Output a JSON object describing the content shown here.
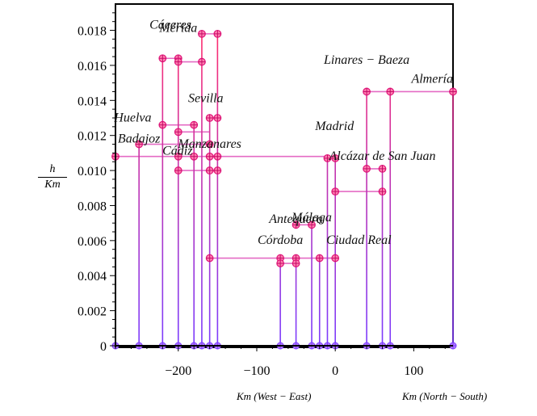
{
  "chart_data": {
    "type": "line",
    "title": "",
    "xlabel": "Km (West − East)",
    "xlabel2": "Km (North − South)",
    "ylabel_num": "h",
    "ylabel_den": "Km",
    "xlim": [
      -280,
      150
    ],
    "ylim": [
      0,
      0.0195
    ],
    "x_ticks": [
      -200,
      -100,
      0,
      100
    ],
    "x_tick_labels": [
      "−200",
      "−100",
      "0",
      "100"
    ],
    "y_ticks": [
      0,
      0.002,
      0.004,
      0.006,
      0.008,
      0.01,
      0.012,
      0.014,
      0.016,
      0.018
    ],
    "y_tick_labels": [
      "0",
      "0.002",
      "0.004",
      "0.006",
      "0.008",
      "0.010",
      "0.012",
      "0.014",
      "0.016",
      "0.018"
    ],
    "cities": [
      {
        "name": "Cáceres",
        "x": -210,
        "y": 0.0181
      },
      {
        "name": "Mérida",
        "x": -200,
        "y": 0.0179
      },
      {
        "name": "Sevilla",
        "x": -165,
        "y": 0.0139
      },
      {
        "name": "Huelva",
        "x": -258,
        "y": 0.0128
      },
      {
        "name": "Badajoz",
        "x": -250,
        "y": 0.0116
      },
      {
        "name": "Cádiz",
        "x": -201,
        "y": 0.0109
      },
      {
        "name": "Manzanares",
        "x": -160,
        "y": 0.0113
      },
      {
        "name": "Linares − Baeza",
        "x": 40,
        "y": 0.0161
      },
      {
        "name": "Almería",
        "x": 150,
        "y": 0.015
      },
      {
        "name": "Madrid",
        "x": -1,
        "y": 0.0123
      },
      {
        "name": "Alcázar de San Juan",
        "x": 60,
        "y": 0.0106
      },
      {
        "name": "Antequera",
        "x": -50,
        "y": 0.007
      },
      {
        "name": "Málaga",
        "x": -30,
        "y": 0.0071
      },
      {
        "name": "Córdoba",
        "x": -70,
        "y": 0.0058
      },
      {
        "name": "Ciudad Real",
        "x": 30,
        "y": 0.0058
      }
    ],
    "stems": [
      {
        "x": -280,
        "top": 0.0108
      },
      {
        "x": -250,
        "top": 0.0115
      },
      {
        "x": -220,
        "top": 0.0164
      },
      {
        "x": -200,
        "top": 0.0164
      },
      {
        "x": -180,
        "top": 0.0126
      },
      {
        "x": -170,
        "top": 0.0178
      },
      {
        "x": -160,
        "top": 0.013
      },
      {
        "x": -150,
        "top": 0.0178
      },
      {
        "x": -70,
        "top": 0.005
      },
      {
        "x": -50,
        "top": 0.005
      },
      {
        "x": -30,
        "top": 0.0069
      },
      {
        "x": -20,
        "top": 0.005
      },
      {
        "x": -10,
        "top": 0.0107
      },
      {
        "x": 0,
        "top": 0.0107
      },
      {
        "x": 40,
        "top": 0.0145
      },
      {
        "x": 60,
        "top": 0.0101
      },
      {
        "x": 70,
        "top": 0.0145
      },
      {
        "x": 150,
        "top": 0.0145
      }
    ],
    "nodes": [
      {
        "x": -280,
        "y": 0.0108
      },
      {
        "x": -250,
        "y": 0.0115
      },
      {
        "x": -220,
        "y": 0.0164
      },
      {
        "x": -220,
        "y": 0.0126
      },
      {
        "x": -200,
        "y": 0.0164
      },
      {
        "x": -200,
        "y": 0.0162
      },
      {
        "x": -200,
        "y": 0.0122
      },
      {
        "x": -200,
        "y": 0.0108
      },
      {
        "x": -200,
        "y": 0.01
      },
      {
        "x": -180,
        "y": 0.0126
      },
      {
        "x": -180,
        "y": 0.0108
      },
      {
        "x": -170,
        "y": 0.0178
      },
      {
        "x": -170,
        "y": 0.0162
      },
      {
        "x": -160,
        "y": 0.013
      },
      {
        "x": -160,
        "y": 0.0115
      },
      {
        "x": -160,
        "y": 0.0108
      },
      {
        "x": -160,
        "y": 0.01
      },
      {
        "x": -160,
        "y": 0.005
      },
      {
        "x": -150,
        "y": 0.0178
      },
      {
        "x": -150,
        "y": 0.013
      },
      {
        "x": -150,
        "y": 0.0108
      },
      {
        "x": -150,
        "y": 0.01
      },
      {
        "x": -70,
        "y": 0.005
      },
      {
        "x": -70,
        "y": 0.0047
      },
      {
        "x": -50,
        "y": 0.0069
      },
      {
        "x": -50,
        "y": 0.005
      },
      {
        "x": -50,
        "y": 0.0047
      },
      {
        "x": -30,
        "y": 0.0069
      },
      {
        "x": -20,
        "y": 0.005
      },
      {
        "x": -10,
        "y": 0.0107
      },
      {
        "x": 0,
        "y": 0.0107
      },
      {
        "x": 0,
        "y": 0.0088
      },
      {
        "x": 0,
        "y": 0.005
      },
      {
        "x": 40,
        "y": 0.0145
      },
      {
        "x": 40,
        "y": 0.0101
      },
      {
        "x": 60,
        "y": 0.0101
      },
      {
        "x": 60,
        "y": 0.0088
      },
      {
        "x": 70,
        "y": 0.0145
      },
      {
        "x": 150,
        "y": 0.0145
      }
    ],
    "links": [
      {
        "x1": -280,
        "x2": -150,
        "y": 0.0108
      },
      {
        "x1": -250,
        "x2": -160,
        "y": 0.0115
      },
      {
        "x1": -220,
        "x2": -200,
        "y": 0.0164
      },
      {
        "x1": -220,
        "x2": -180,
        "y": 0.0126
      },
      {
        "x1": -200,
        "x2": -170,
        "y": 0.0162
      },
      {
        "x1": -200,
        "x2": -160,
        "y": 0.0122
      },
      {
        "x1": -200,
        "x2": -150,
        "y": 0.01
      },
      {
        "x1": -170,
        "x2": -150,
        "y": 0.0178
      },
      {
        "x1": -160,
        "x2": -150,
        "y": 0.013
      },
      {
        "x1": -160,
        "x2": 0,
        "y": 0.005
      },
      {
        "x1": -150,
        "x2": -10,
        "y": 0.0108
      },
      {
        "x1": -70,
        "x2": -50,
        "y": 0.0047
      },
      {
        "x1": -50,
        "x2": -30,
        "y": 0.0069
      },
      {
        "x1": -20,
        "x2": 0,
        "y": 0.005
      },
      {
        "x1": 0,
        "x2": 60,
        "y": 0.0088
      },
      {
        "x1": 40,
        "x2": 60,
        "y": 0.0101
      },
      {
        "x1": 40,
        "x2": 150,
        "y": 0.0145
      }
    ],
    "colors": {
      "axis": "#000000",
      "bottom": "#7a3cff",
      "top": "#ff2d6e",
      "node_fill": "#ff7fb0"
    }
  }
}
